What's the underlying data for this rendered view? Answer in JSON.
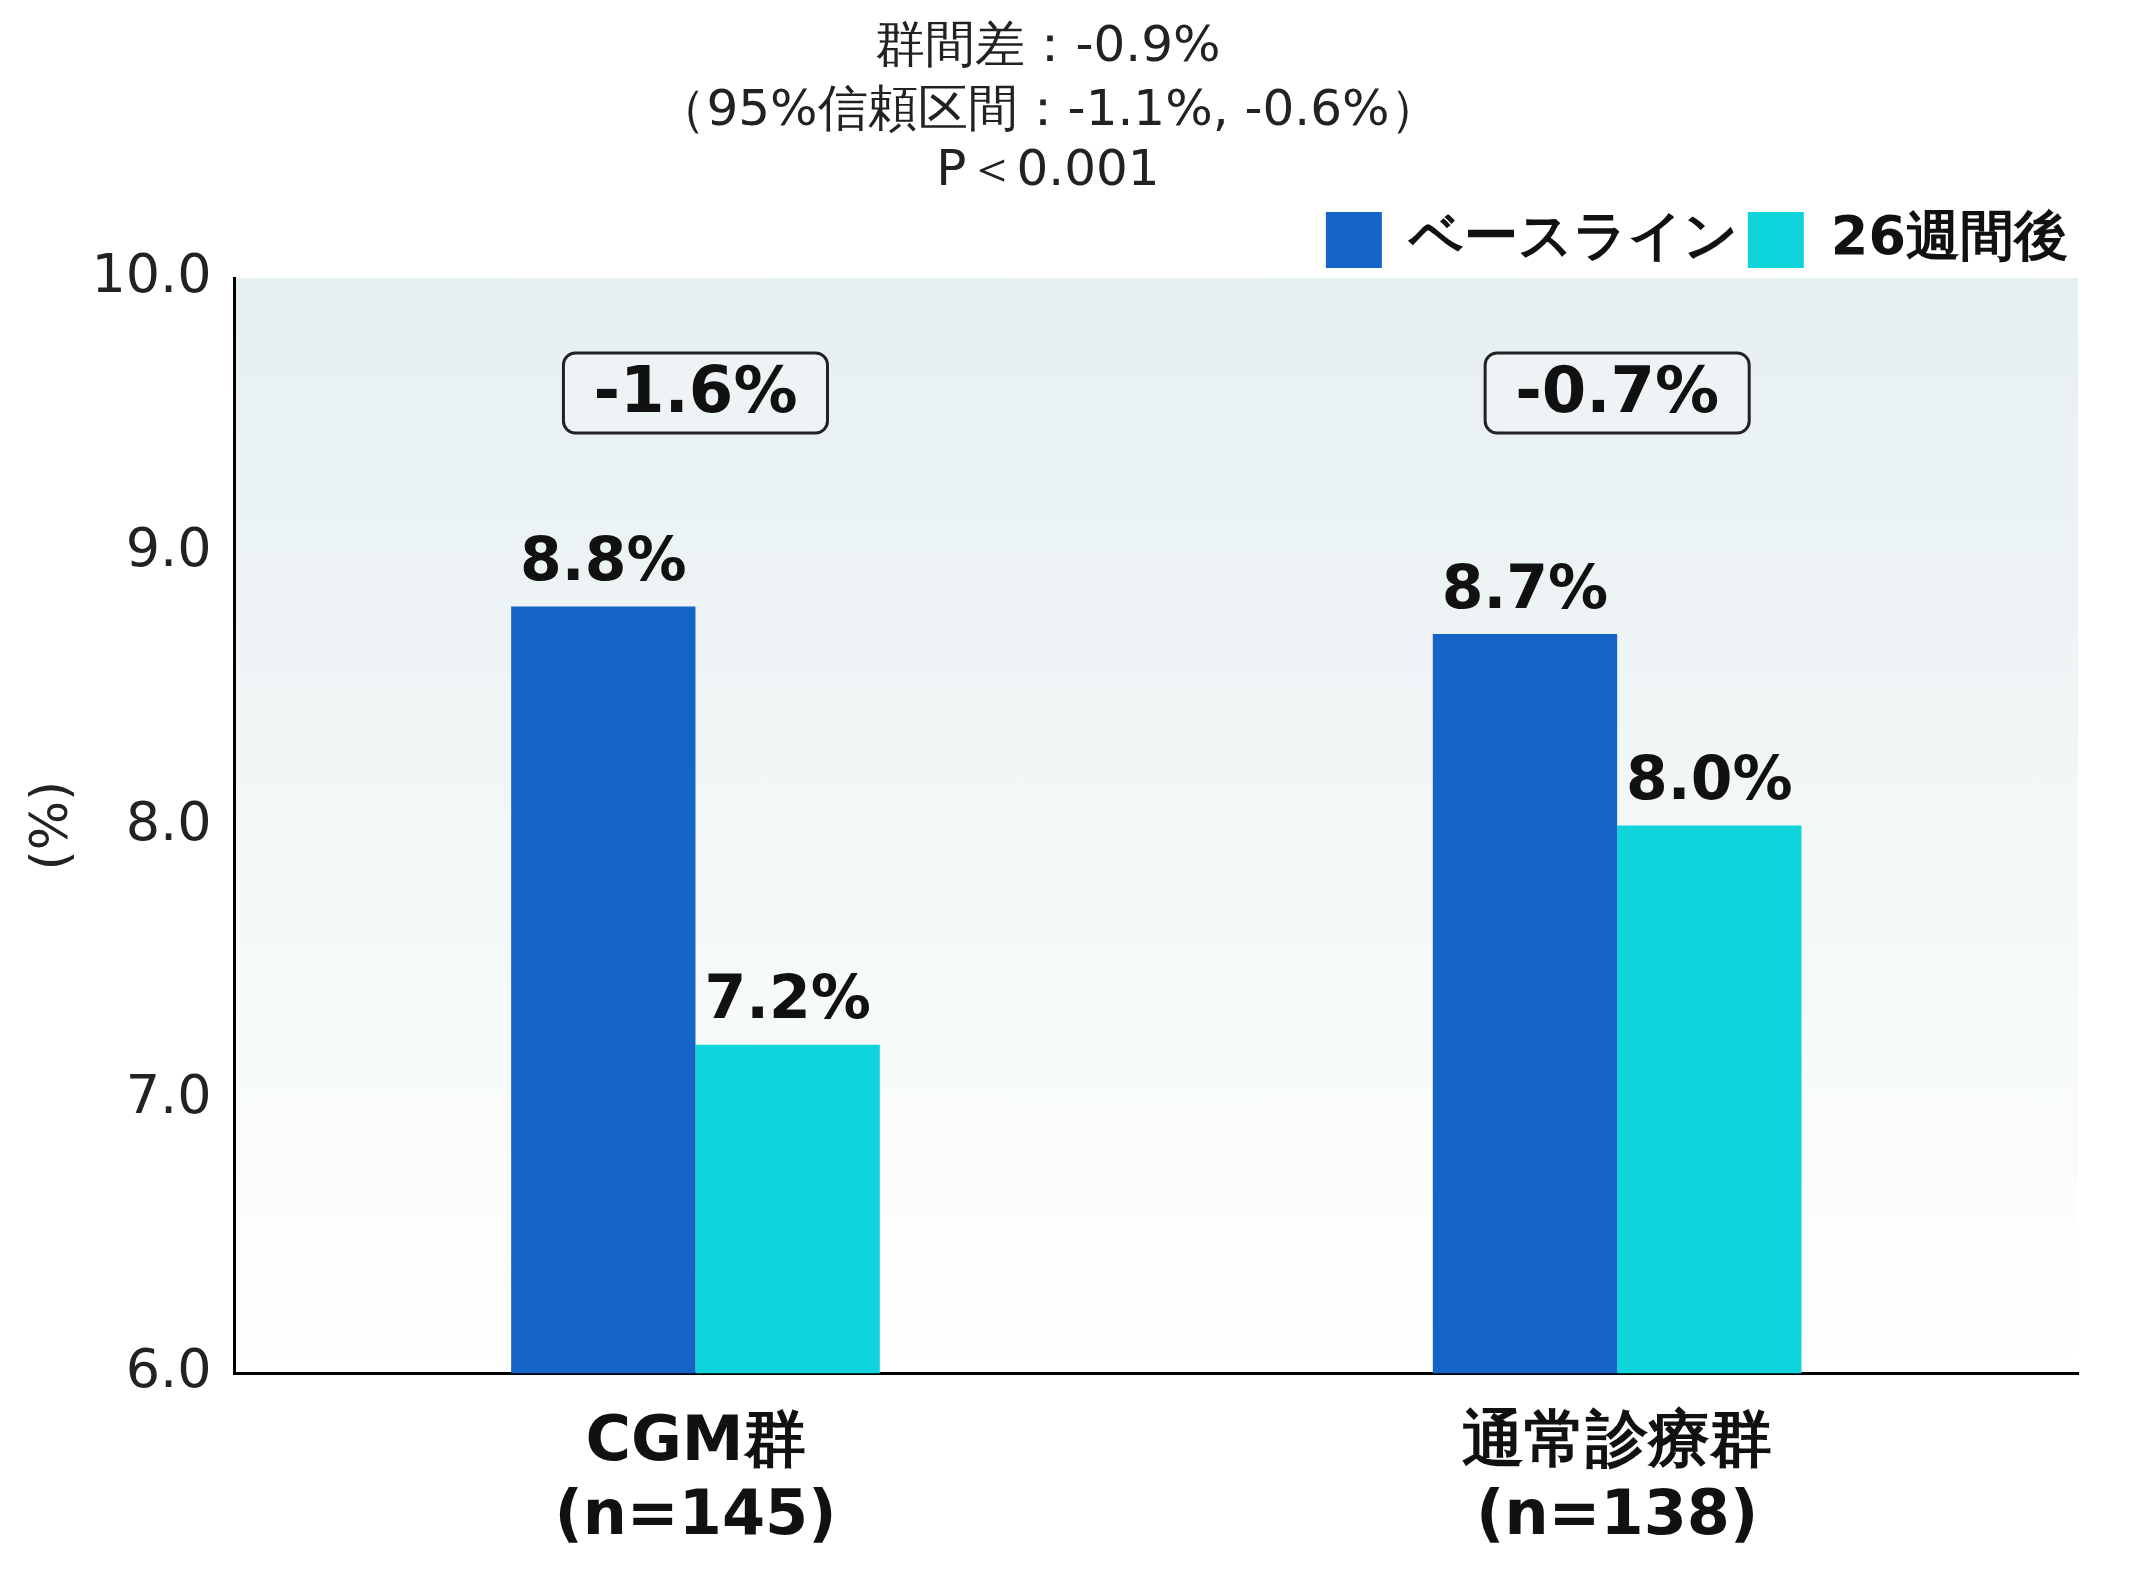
{
  "chart_data": {
    "type": "bar",
    "title": "群間差：-0.9%",
    "subtitle": "（95%信頼区間：-1.1%, -0.6%）\nP＜0.001",
    "ylabel": "(%)",
    "categories": [
      "CGM群\n(n=145)",
      "通常診療群\n(n=138)"
    ],
    "series": [
      {
        "name": "ベースライン",
        "color": "#1565c8",
        "values": [
          8.8,
          8.7
        ],
        "value_labels": [
          "8.8%",
          "8.7%"
        ]
      },
      {
        "name": "26週間後",
        "color": "#10d4dc",
        "values": [
          7.2,
          8.0
        ],
        "value_labels": [
          "7.2%",
          "8.0%"
        ]
      }
    ],
    "ylim": [
      6,
      10
    ],
    "yticks": [
      {
        "value": 6,
        "label": "6.0"
      },
      {
        "value": 7,
        "label": "7.0"
      },
      {
        "value": 8,
        "label": "8.0"
      },
      {
        "value": 9,
        "label": "9.0"
      },
      {
        "value": 10,
        "label": "10.0"
      }
    ],
    "grid": false,
    "legend": "top right",
    "annotations": [
      "-1.6%",
      "-0.7%"
    ]
  }
}
